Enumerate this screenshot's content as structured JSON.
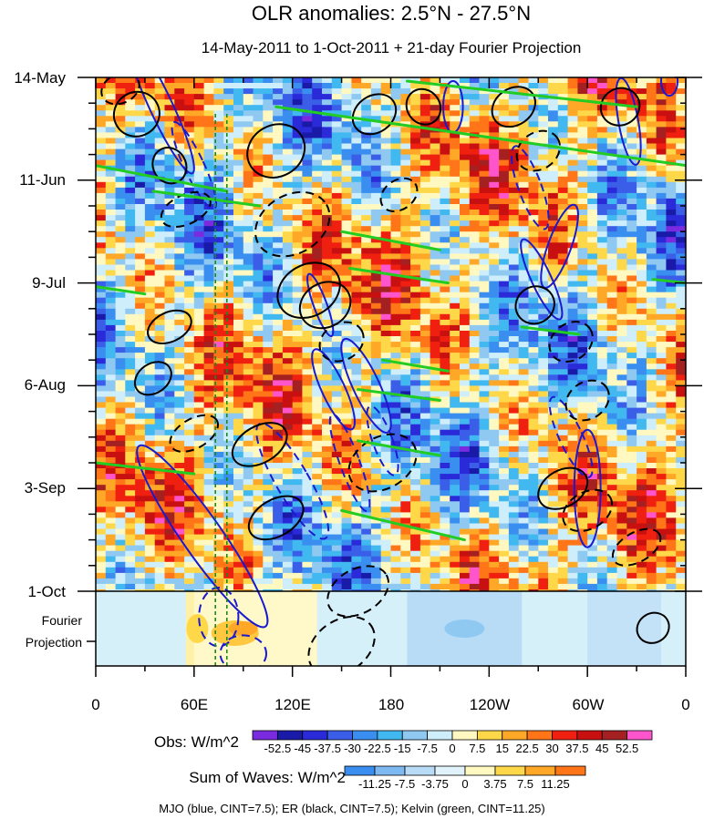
{
  "chart_data": {
    "type": "heatmap",
    "title": "OLR anomalies: 2.5°N - 27.5°N",
    "subtitle": "14-May-2011 to 1-Oct-2011 + 21-day Fourier Projection",
    "x_tick_labels": [
      "0",
      "60E",
      "120E",
      "180",
      "120W",
      "60W",
      "0"
    ],
    "x_ticks_deg": [
      0,
      60,
      120,
      180,
      240,
      300,
      360
    ],
    "y_tick_labels": [
      "14-May",
      "11-Jun",
      "9-Jul",
      "6-Aug",
      "3-Sep",
      "1-Oct"
    ],
    "y_ticks_day": [
      0,
      28,
      56,
      84,
      112,
      140
    ],
    "projection_label_lines": [
      "Fourier",
      "Projection"
    ],
    "x_range_deg": [
      0,
      360
    ],
    "day_range": [
      0,
      161
    ],
    "projection_start_day": 140,
    "mjo_marker_lon": [
      73,
      80
    ],
    "obs_colorbar": {
      "label": "Obs: W/m^2",
      "levels": [
        "-52.5",
        "-45",
        "-37.5",
        "-30",
        "-22.5",
        "-15",
        "-7.5",
        "0",
        "7.5",
        "15",
        "22.5",
        "30",
        "37.5",
        "45",
        "52.5"
      ],
      "colors": [
        "#7a2be0",
        "#1a1aa8",
        "#2a2ad8",
        "#3b5ee8",
        "#3a8ef0",
        "#41b8f0",
        "#8fc9f2",
        "#cdeefa",
        "#fff8c0",
        "#ffd84a",
        "#ffa726",
        "#ff7518",
        "#f02010",
        "#c81010",
        "#a52020",
        "#ff55cc"
      ]
    },
    "waves_colorbar": {
      "label": "Sum of Waves: W/m^2",
      "levels": [
        "-11.25",
        "-7.5",
        "-3.75",
        "0",
        "3.75",
        "7.5",
        "11.25"
      ],
      "colors": [
        "#3a8ef0",
        "#7fb9f2",
        "#b8dcf6",
        "#e0f3fb",
        "#fff8c0",
        "#ffd84a",
        "#ffa726",
        "#ff7518"
      ]
    },
    "footer": "MJO (blue, CINT=7.5); ER (black, CINT=7.5); Kelvin (green, CINT=11.25)",
    "series": [
      {
        "name": "MJO",
        "color": "#1a1ad0",
        "cint": 7.5
      },
      {
        "name": "ER",
        "color": "#000000",
        "cint": 7.5
      },
      {
        "name": "Kelvin",
        "color": "#22cc22",
        "cint": 11.25
      }
    ],
    "mjo_contours": [
      {
        "lon": 40,
        "day": 8,
        "rx": 7,
        "ry": 20,
        "rot": -25,
        "sign": "pos"
      },
      {
        "lon": 60,
        "day": 24,
        "rx": 6,
        "ry": 13,
        "rot": -25,
        "sign": "neg"
      },
      {
        "lon": 65,
        "day": 125,
        "rx": 12,
        "ry": 30,
        "rot": -35,
        "sign": "pos"
      },
      {
        "lon": 75,
        "day": 147,
        "rx": 12,
        "ry": 8,
        "rot": 0,
        "sign": "neg"
      },
      {
        "lon": 90,
        "day": 157,
        "rx": 14,
        "ry": 5,
        "rot": 0,
        "sign": "neg"
      },
      {
        "lon": 120,
        "day": 110,
        "rx": 10,
        "ry": 18,
        "rot": -30,
        "sign": "neg"
      },
      {
        "lon": 137,
        "day": 62,
        "rx": 4,
        "ry": 9,
        "rot": -20,
        "sign": "pos"
      },
      {
        "lon": 145,
        "day": 85,
        "rx": 7,
        "ry": 12,
        "rot": -25,
        "sign": "pos"
      },
      {
        "lon": 155,
        "day": 105,
        "rx": 6,
        "ry": 14,
        "rot": -20,
        "sign": "neg"
      },
      {
        "lon": 165,
        "day": 84,
        "rx": 8,
        "ry": 14,
        "rot": -25,
        "sign": "pos"
      },
      {
        "lon": 175,
        "day": 99,
        "rx": 6,
        "ry": 10,
        "rot": -20,
        "sign": "neg"
      },
      {
        "lon": 218,
        "day": 8,
        "rx": 6,
        "ry": 7,
        "rot": 0,
        "sign": "pos"
      },
      {
        "lon": 265,
        "day": 30,
        "rx": 7,
        "ry": 12,
        "rot": -20,
        "sign": "neg"
      },
      {
        "lon": 272,
        "day": 55,
        "rx": 6,
        "ry": 12,
        "rot": -25,
        "sign": "pos"
      },
      {
        "lon": 283,
        "day": 46,
        "rx": 7,
        "ry": 12,
        "rot": 20,
        "sign": "pos"
      },
      {
        "lon": 290,
        "day": 98,
        "rx": 7,
        "ry": 12,
        "rot": -25,
        "sign": "neg"
      },
      {
        "lon": 300,
        "day": 112,
        "rx": 8,
        "ry": 16,
        "rot": 0,
        "sign": "pos"
      },
      {
        "lon": 325,
        "day": 12,
        "rx": 6,
        "ry": 12,
        "rot": -10,
        "sign": "pos"
      },
      {
        "lon": 350,
        "day": 1,
        "rx": 5,
        "ry": 4,
        "rot": 0,
        "sign": "pos"
      }
    ],
    "er_contours": [
      {
        "lon": 25,
        "day": 10,
        "rx": 14,
        "ry": 6,
        "rot": -30,
        "sign": "pos"
      },
      {
        "lon": 45,
        "day": 24,
        "rx": 10,
        "ry": 5,
        "rot": -30,
        "sign": "pos"
      },
      {
        "lon": 15,
        "day": 3,
        "rx": 12,
        "ry": 4,
        "rot": -25,
        "sign": "neg"
      },
      {
        "lon": 35,
        "day": 82,
        "rx": 12,
        "ry": 4,
        "rot": -35,
        "sign": "pos"
      },
      {
        "lon": 45,
        "day": 68,
        "rx": 14,
        "ry": 4,
        "rot": -25,
        "sign": "pos"
      },
      {
        "lon": 55,
        "day": 36,
        "rx": 16,
        "ry": 4,
        "rot": -25,
        "sign": "neg"
      },
      {
        "lon": 60,
        "day": 97,
        "rx": 16,
        "ry": 4,
        "rot": -30,
        "sign": "neg"
      },
      {
        "lon": 120,
        "day": 40,
        "rx": 24,
        "ry": 8,
        "rot": -30,
        "sign": "neg"
      },
      {
        "lon": 110,
        "day": 20,
        "rx": 18,
        "ry": 7,
        "rot": -30,
        "sign": "pos"
      },
      {
        "lon": 130,
        "day": 58,
        "rx": 20,
        "ry": 7,
        "rot": -30,
        "sign": "pos"
      },
      {
        "lon": 140,
        "day": 62,
        "rx": 16,
        "ry": 6,
        "rot": -30,
        "sign": "pos"
      },
      {
        "lon": 100,
        "day": 100,
        "rx": 18,
        "ry": 5,
        "rot": -30,
        "sign": "pos"
      },
      {
        "lon": 110,
        "day": 120,
        "rx": 18,
        "ry": 5,
        "rot": -30,
        "sign": "pos"
      },
      {
        "lon": 150,
        "day": 72,
        "rx": 14,
        "ry": 5,
        "rot": -30,
        "sign": "neg"
      },
      {
        "lon": 170,
        "day": 10,
        "rx": 14,
        "ry": 5,
        "rot": -35,
        "sign": "pos"
      },
      {
        "lon": 185,
        "day": 32,
        "rx": 12,
        "ry": 4,
        "rot": -35,
        "sign": "neg"
      },
      {
        "lon": 200,
        "day": 8,
        "rx": 10,
        "ry": 5,
        "rot": -35,
        "sign": "pos"
      },
      {
        "lon": 175,
        "day": 105,
        "rx": 22,
        "ry": 7,
        "rot": -30,
        "sign": "neg"
      },
      {
        "lon": 160,
        "day": 140,
        "rx": 20,
        "ry": 6,
        "rot": -30,
        "sign": "neg"
      },
      {
        "lon": 150,
        "day": 155,
        "rx": 22,
        "ry": 7,
        "rot": -35,
        "sign": "neg"
      },
      {
        "lon": 255,
        "day": 8,
        "rx": 14,
        "ry": 5,
        "rot": -35,
        "sign": "pos"
      },
      {
        "lon": 270,
        "day": 20,
        "rx": 14,
        "ry": 5,
        "rot": -35,
        "sign": "neg"
      },
      {
        "lon": 268,
        "day": 62,
        "rx": 12,
        "ry": 5,
        "rot": -30,
        "sign": "pos"
      },
      {
        "lon": 290,
        "day": 72,
        "rx": 14,
        "ry": 5,
        "rot": -35,
        "sign": "neg"
      },
      {
        "lon": 300,
        "day": 88,
        "rx": 14,
        "ry": 5,
        "rot": -35,
        "sign": "neg"
      },
      {
        "lon": 285,
        "day": 112,
        "rx": 16,
        "ry": 5,
        "rot": -30,
        "sign": "pos"
      },
      {
        "lon": 300,
        "day": 118,
        "rx": 16,
        "ry": 5,
        "rot": -30,
        "sign": "neg"
      },
      {
        "lon": 330,
        "day": 128,
        "rx": 16,
        "ry": 4,
        "rot": -30,
        "sign": "neg"
      },
      {
        "lon": 340,
        "day": 150,
        "rx": 10,
        "ry": 4,
        "rot": -30,
        "sign": "pos"
      },
      {
        "lon": 320,
        "day": 8,
        "rx": 12,
        "ry": 5,
        "rot": -30,
        "sign": "pos"
      }
    ],
    "kelvin_segments": [
      {
        "lon1": 110,
        "day1": 8,
        "lon2": 360,
        "day2": 24
      },
      {
        "lon1": 0,
        "day1": 24,
        "lon2": 80,
        "day2": 31
      },
      {
        "lon1": 190,
        "day1": 1,
        "lon2": 330,
        "day2": 8
      },
      {
        "lon1": 150,
        "day1": 42,
        "lon2": 210,
        "day2": 47
      },
      {
        "lon1": 0,
        "day1": 57,
        "lon2": 30,
        "day2": 59
      },
      {
        "lon1": 155,
        "day1": 52,
        "lon2": 215,
        "day2": 56
      },
      {
        "lon1": 340,
        "day1": 55,
        "lon2": 360,
        "day2": 56
      },
      {
        "lon1": 175,
        "day1": 77,
        "lon2": 215,
        "day2": 80
      },
      {
        "lon1": 160,
        "day1": 85,
        "lon2": 210,
        "day2": 88
      },
      {
        "lon1": 0,
        "day1": 105,
        "lon2": 60,
        "day2": 108
      },
      {
        "lon1": 160,
        "day1": 99,
        "lon2": 210,
        "day2": 103
      },
      {
        "lon1": 150,
        "day1": 118,
        "lon2": 225,
        "day2": 126
      },
      {
        "lon1": 260,
        "day1": 68,
        "lon2": 295,
        "day2": 70
      },
      {
        "lon1": 35,
        "day1": 31,
        "lon2": 100,
        "day2": 35
      }
    ],
    "projection_bands": [
      {
        "lon1": 0,
        "lon2": 360,
        "color": "#d6f0fa"
      },
      {
        "lon1": 55,
        "lon2": 80,
        "color": "#fff0a8"
      },
      {
        "lon1": 60,
        "lon2": 135,
        "color": "#fff8c8"
      },
      {
        "lon1": 190,
        "lon2": 260,
        "color": "#b8dcf6"
      },
      {
        "lon1": 300,
        "lon2": 345,
        "color": "#c4e2f7"
      }
    ]
  }
}
